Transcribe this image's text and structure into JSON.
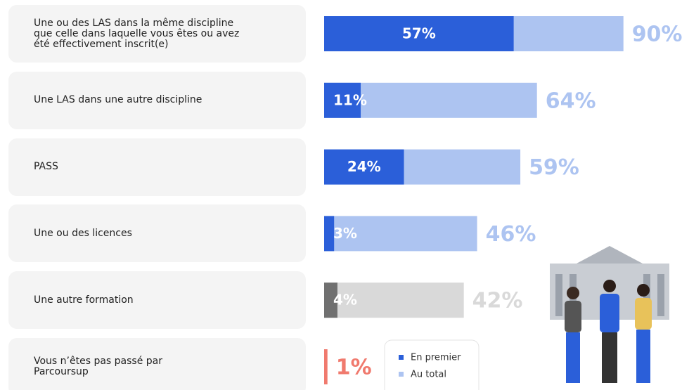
{
  "chart_data": {
    "type": "bar",
    "categories": [
      "Une ou des LAS dans la même discipline que celle dans laquelle vous êtes ou avez été effectivement inscrit(e)",
      "Une LAS dans une autre discipline",
      "PASS",
      "Une ou des licences",
      "Une autre formation",
      "Vous n’êtes pas passé par Parcoursup"
    ],
    "xlim": [
      0,
      100
    ],
    "series": [
      {
        "name": "En premier",
        "color": "#2b5fd9",
        "colors": [
          "#2b5fd9",
          "#2b5fd9",
          "#2b5fd9",
          "#2b5fd9",
          "#707070",
          "#2b5fd9"
        ],
        "values": [
          57,
          11,
          24,
          3,
          4,
          null
        ],
        "value_labels": [
          "57%",
          "11%",
          "24%",
          "3%",
          "4%",
          null
        ]
      },
      {
        "name": "Au total",
        "color": "#adc4f1",
        "colors": [
          "#adc4f1",
          "#adc4f1",
          "#adc4f1",
          "#adc4f1",
          "#d9d9d9",
          "#f07a6e"
        ],
        "values": [
          90,
          64,
          59,
          46,
          42,
          1
        ],
        "value_labels": [
          "90%",
          "64%",
          "59%",
          "46%",
          "42%",
          "1%"
        ]
      }
    ]
  }
}
